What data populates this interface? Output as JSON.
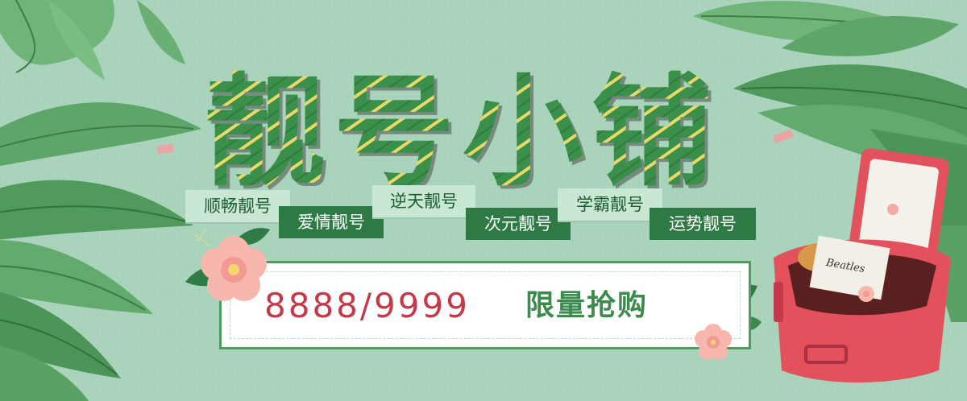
{
  "banner": {
    "title": "靓号小铺",
    "tags": [
      {
        "label": "顺畅靓号"
      },
      {
        "label": "爱情靓号"
      },
      {
        "label": "逆天靓号"
      },
      {
        "label": "次元靓号"
      },
      {
        "label": "学霸靓号"
      },
      {
        "label": "运势靓号"
      }
    ],
    "promo": {
      "number": "8888/9999",
      "text": "限量抢购"
    },
    "suitcase_label": "Beatles"
  },
  "colors": {
    "background": "#a9d3bb",
    "title_green": "#3a8f4a",
    "tag_dark": "#2d7a45",
    "promo_red": "#c43a4a",
    "suitcase_red": "#e2515c"
  }
}
